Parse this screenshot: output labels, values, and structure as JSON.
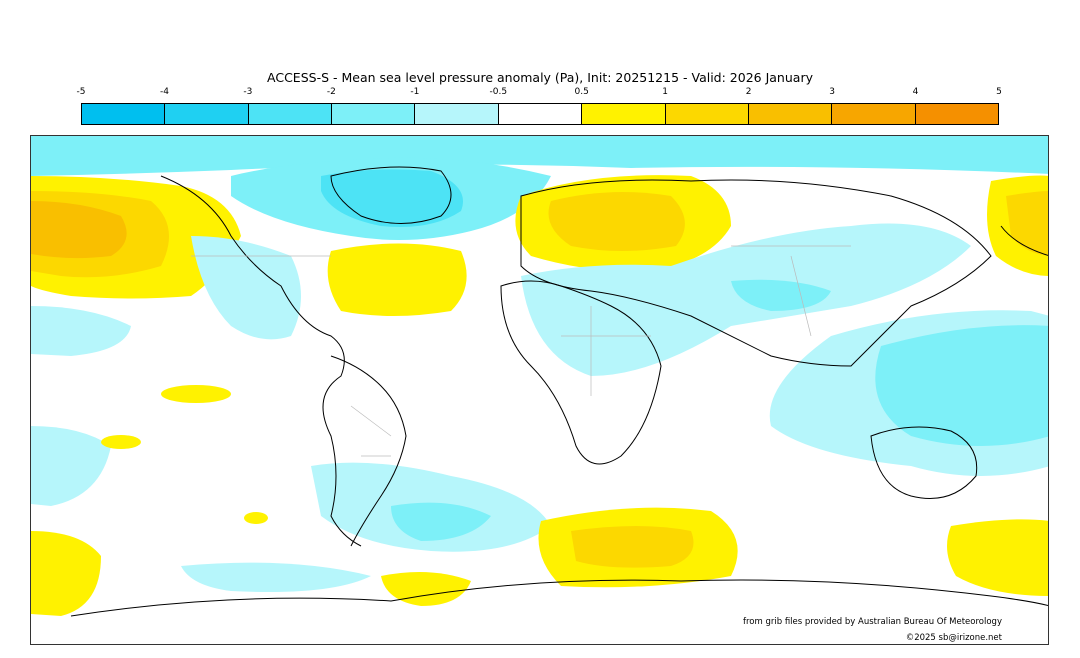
{
  "title": "ACCESS-S - Mean sea level pressure anomaly (Pa), Init: 20251215 - Valid: 2026 January",
  "colorbar": {
    "ticks": [
      "-5",
      "-4",
      "-3",
      "-2",
      "-1",
      "-0.5",
      "0.5",
      "1",
      "2",
      "3",
      "4",
      "5"
    ],
    "colors": [
      "#00bfef",
      "#1fd0f2",
      "#4de3f5",
      "#7df0f8",
      "#b6f6fb",
      "#ffffff",
      "#fff200",
      "#fcd800",
      "#f9bf00",
      "#f7a600",
      "#f59000"
    ]
  },
  "credits": {
    "source": "from grib files provided by Australian Bureau Of Meteorology",
    "copyright": "©2025 sb@irizone.net"
  }
}
